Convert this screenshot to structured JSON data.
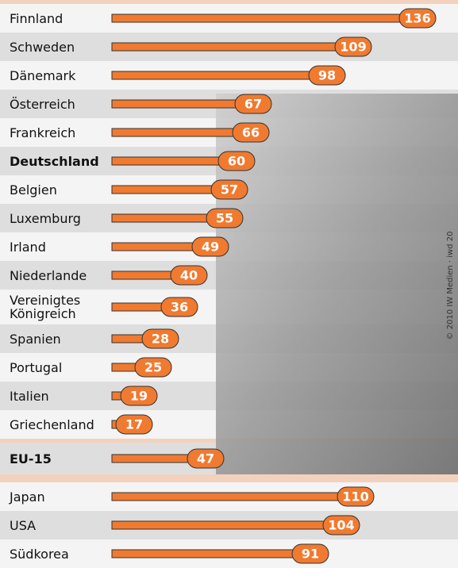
{
  "chart_data": {
    "type": "bar",
    "orientation": "horizontal",
    "categories": [
      "Finnland",
      "Schweden",
      "Dänemark",
      "Österreich",
      "Frankreich",
      "Deutschland",
      "Belgien",
      "Luxemburg",
      "Irland",
      "Niederlande",
      "Vereinigtes Königreich",
      "Spanien",
      "Portugal",
      "Italien",
      "Griechenland",
      "EU-15",
      "Japan",
      "USA",
      "Südkorea"
    ],
    "values": [
      136,
      109,
      98,
      67,
      66,
      60,
      57,
      55,
      49,
      40,
      36,
      28,
      25,
      19,
      17,
      47,
      110,
      104,
      91
    ],
    "color": "#f07a30",
    "xlim": [
      0,
      145
    ],
    "credit": "© 2010 IW Medien · iwd 20"
  }
}
